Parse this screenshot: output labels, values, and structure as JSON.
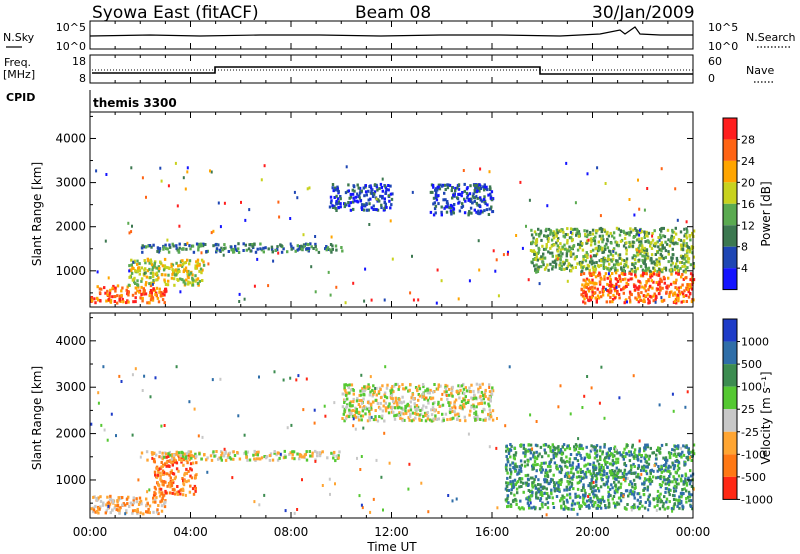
{
  "header": {
    "station": "Syowa East (fitACF)",
    "beam": "Beam 08",
    "date": "30/Jan/2009"
  },
  "noise_panel": {
    "left_label": "N.Sky",
    "right_label": "N.Search",
    "left_ticks": [
      "10^5",
      "10^0"
    ],
    "right_ticks": [
      "10^5",
      "10^0"
    ]
  },
  "freq_panel": {
    "left_label_1": "Freq.",
    "left_label_2": "[MHz]",
    "right_label": "Nave",
    "left_ticks": [
      "18",
      "8"
    ],
    "right_ticks": [
      "60",
      "0"
    ]
  },
  "cpid": {
    "label": "CPID",
    "value": "themis 3300"
  },
  "chart_data": [
    {
      "type": "heatmap",
      "name": "power",
      "ylabel": "Slant Range [km]",
      "yticks": [
        "1000",
        "2000",
        "3000",
        "4000"
      ],
      "ylim": [
        180,
        4600
      ],
      "colorbar": {
        "label": "Power [dB]",
        "ticks": [
          "4",
          "8",
          "12",
          "16",
          "20",
          "24",
          "28"
        ],
        "colors": [
          "#1414ff",
          "#1e46b4",
          "#3c7850",
          "#5aaa50",
          "#c8d21e",
          "#ffa500",
          "#ff6414",
          "#ff1e1e"
        ]
      },
      "features": [
        {
          "t0": 0.0,
          "t1": 3.0,
          "r0": 300,
          "r1": 700,
          "level": 6
        },
        {
          "t0": 1.5,
          "t1": 4.5,
          "r0": 700,
          "r1": 1300,
          "level": 4
        },
        {
          "t0": 2.0,
          "t1": 10.0,
          "r0": 1450,
          "r1": 1650,
          "level": 2
        },
        {
          "t0": 9.5,
          "t1": 12.0,
          "r0": 2400,
          "r1": 3000,
          "level": 1
        },
        {
          "t0": 13.5,
          "t1": 16.0,
          "r0": 2300,
          "r1": 3000,
          "level": 1
        },
        {
          "t0": 17.5,
          "t1": 24.0,
          "r0": 1000,
          "r1": 2000,
          "level": 3
        },
        {
          "t0": 19.5,
          "t1": 24.0,
          "r0": 300,
          "r1": 1000,
          "level": 6
        }
      ]
    },
    {
      "type": "heatmap",
      "name": "velocity",
      "ylabel": "Slant Range [km]",
      "yticks": [
        "1000",
        "2000",
        "3000",
        "4000"
      ],
      "ylim": [
        180,
        4600
      ],
      "xticks": [
        "00:00",
        "04:00",
        "08:00",
        "12:00",
        "16:00",
        "20:00",
        "00:00"
      ],
      "xlabel": "Time UT",
      "colorbar": {
        "label": "Velocity [m s⁻¹]",
        "ticks": [
          "1000",
          "500",
          "100",
          "25",
          "-25",
          "-100",
          "-500",
          "-1000"
        ],
        "colors": [
          "#1e3cc8",
          "#2f6ea8",
          "#3c8c50",
          "#55c832",
          "#c8c8c8",
          "#ffa532",
          "#ff7814",
          "#ff2814"
        ]
      },
      "features": [
        {
          "t0": 0.0,
          "t1": 3.0,
          "r0": 300,
          "r1": 700,
          "level": 5
        },
        {
          "t0": 2.5,
          "t1": 4.2,
          "r0": 700,
          "r1": 1600,
          "level": 6
        },
        {
          "t0": 2.0,
          "t1": 10.0,
          "r0": 1450,
          "r1": 1650,
          "level": 4
        },
        {
          "t0": 10.0,
          "t1": 16.0,
          "r0": 2300,
          "r1": 3100,
          "level": 4
        },
        {
          "t0": 16.5,
          "t1": 24.0,
          "r0": 400,
          "r1": 1800,
          "level": 2
        }
      ]
    }
  ]
}
